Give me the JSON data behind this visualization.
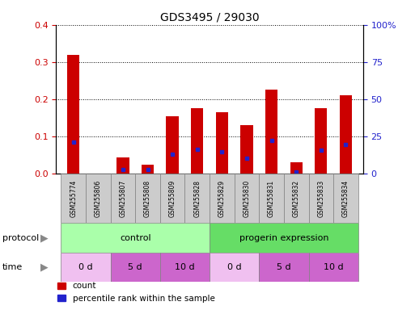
{
  "title": "GDS3495 / 29030",
  "samples": [
    "GSM255774",
    "GSM255806",
    "GSM255807",
    "GSM255808",
    "GSM255809",
    "GSM255828",
    "GSM255829",
    "GSM255830",
    "GSM255831",
    "GSM255832",
    "GSM255833",
    "GSM255834"
  ],
  "red_values": [
    0.32,
    0.0,
    0.043,
    0.025,
    0.155,
    0.175,
    0.165,
    0.13,
    0.225,
    0.03,
    0.175,
    0.21
  ],
  "blue_values": [
    0.085,
    0.0,
    0.01,
    0.01,
    0.052,
    0.065,
    0.058,
    0.042,
    0.088,
    0.005,
    0.062,
    0.078
  ],
  "ylim_left": [
    0,
    0.4
  ],
  "ylim_right": [
    0,
    100
  ],
  "yticks_left": [
    0.0,
    0.1,
    0.2,
    0.3,
    0.4
  ],
  "yticks_right": [
    0,
    25,
    50,
    75,
    100
  ],
  "ytick_labels_right": [
    "0",
    "25",
    "50",
    "75",
    "100%"
  ],
  "bar_width": 0.5,
  "red_color": "#CC0000",
  "blue_color": "#2222CC",
  "tick_label_color_left": "#CC0000",
  "tick_label_color_right": "#2222CC",
  "legend_items": [
    "count",
    "percentile rank within the sample"
  ],
  "legend_colors": [
    "#CC0000",
    "#2222CC"
  ],
  "proto_control_color": "#AAFFAA",
  "proto_progerin_color": "#66DD66",
  "time_light_color": "#F0C0F0",
  "time_dark_color": "#CC66CC",
  "sample_box_color": "#CCCCCC",
  "label_color": "#888888"
}
